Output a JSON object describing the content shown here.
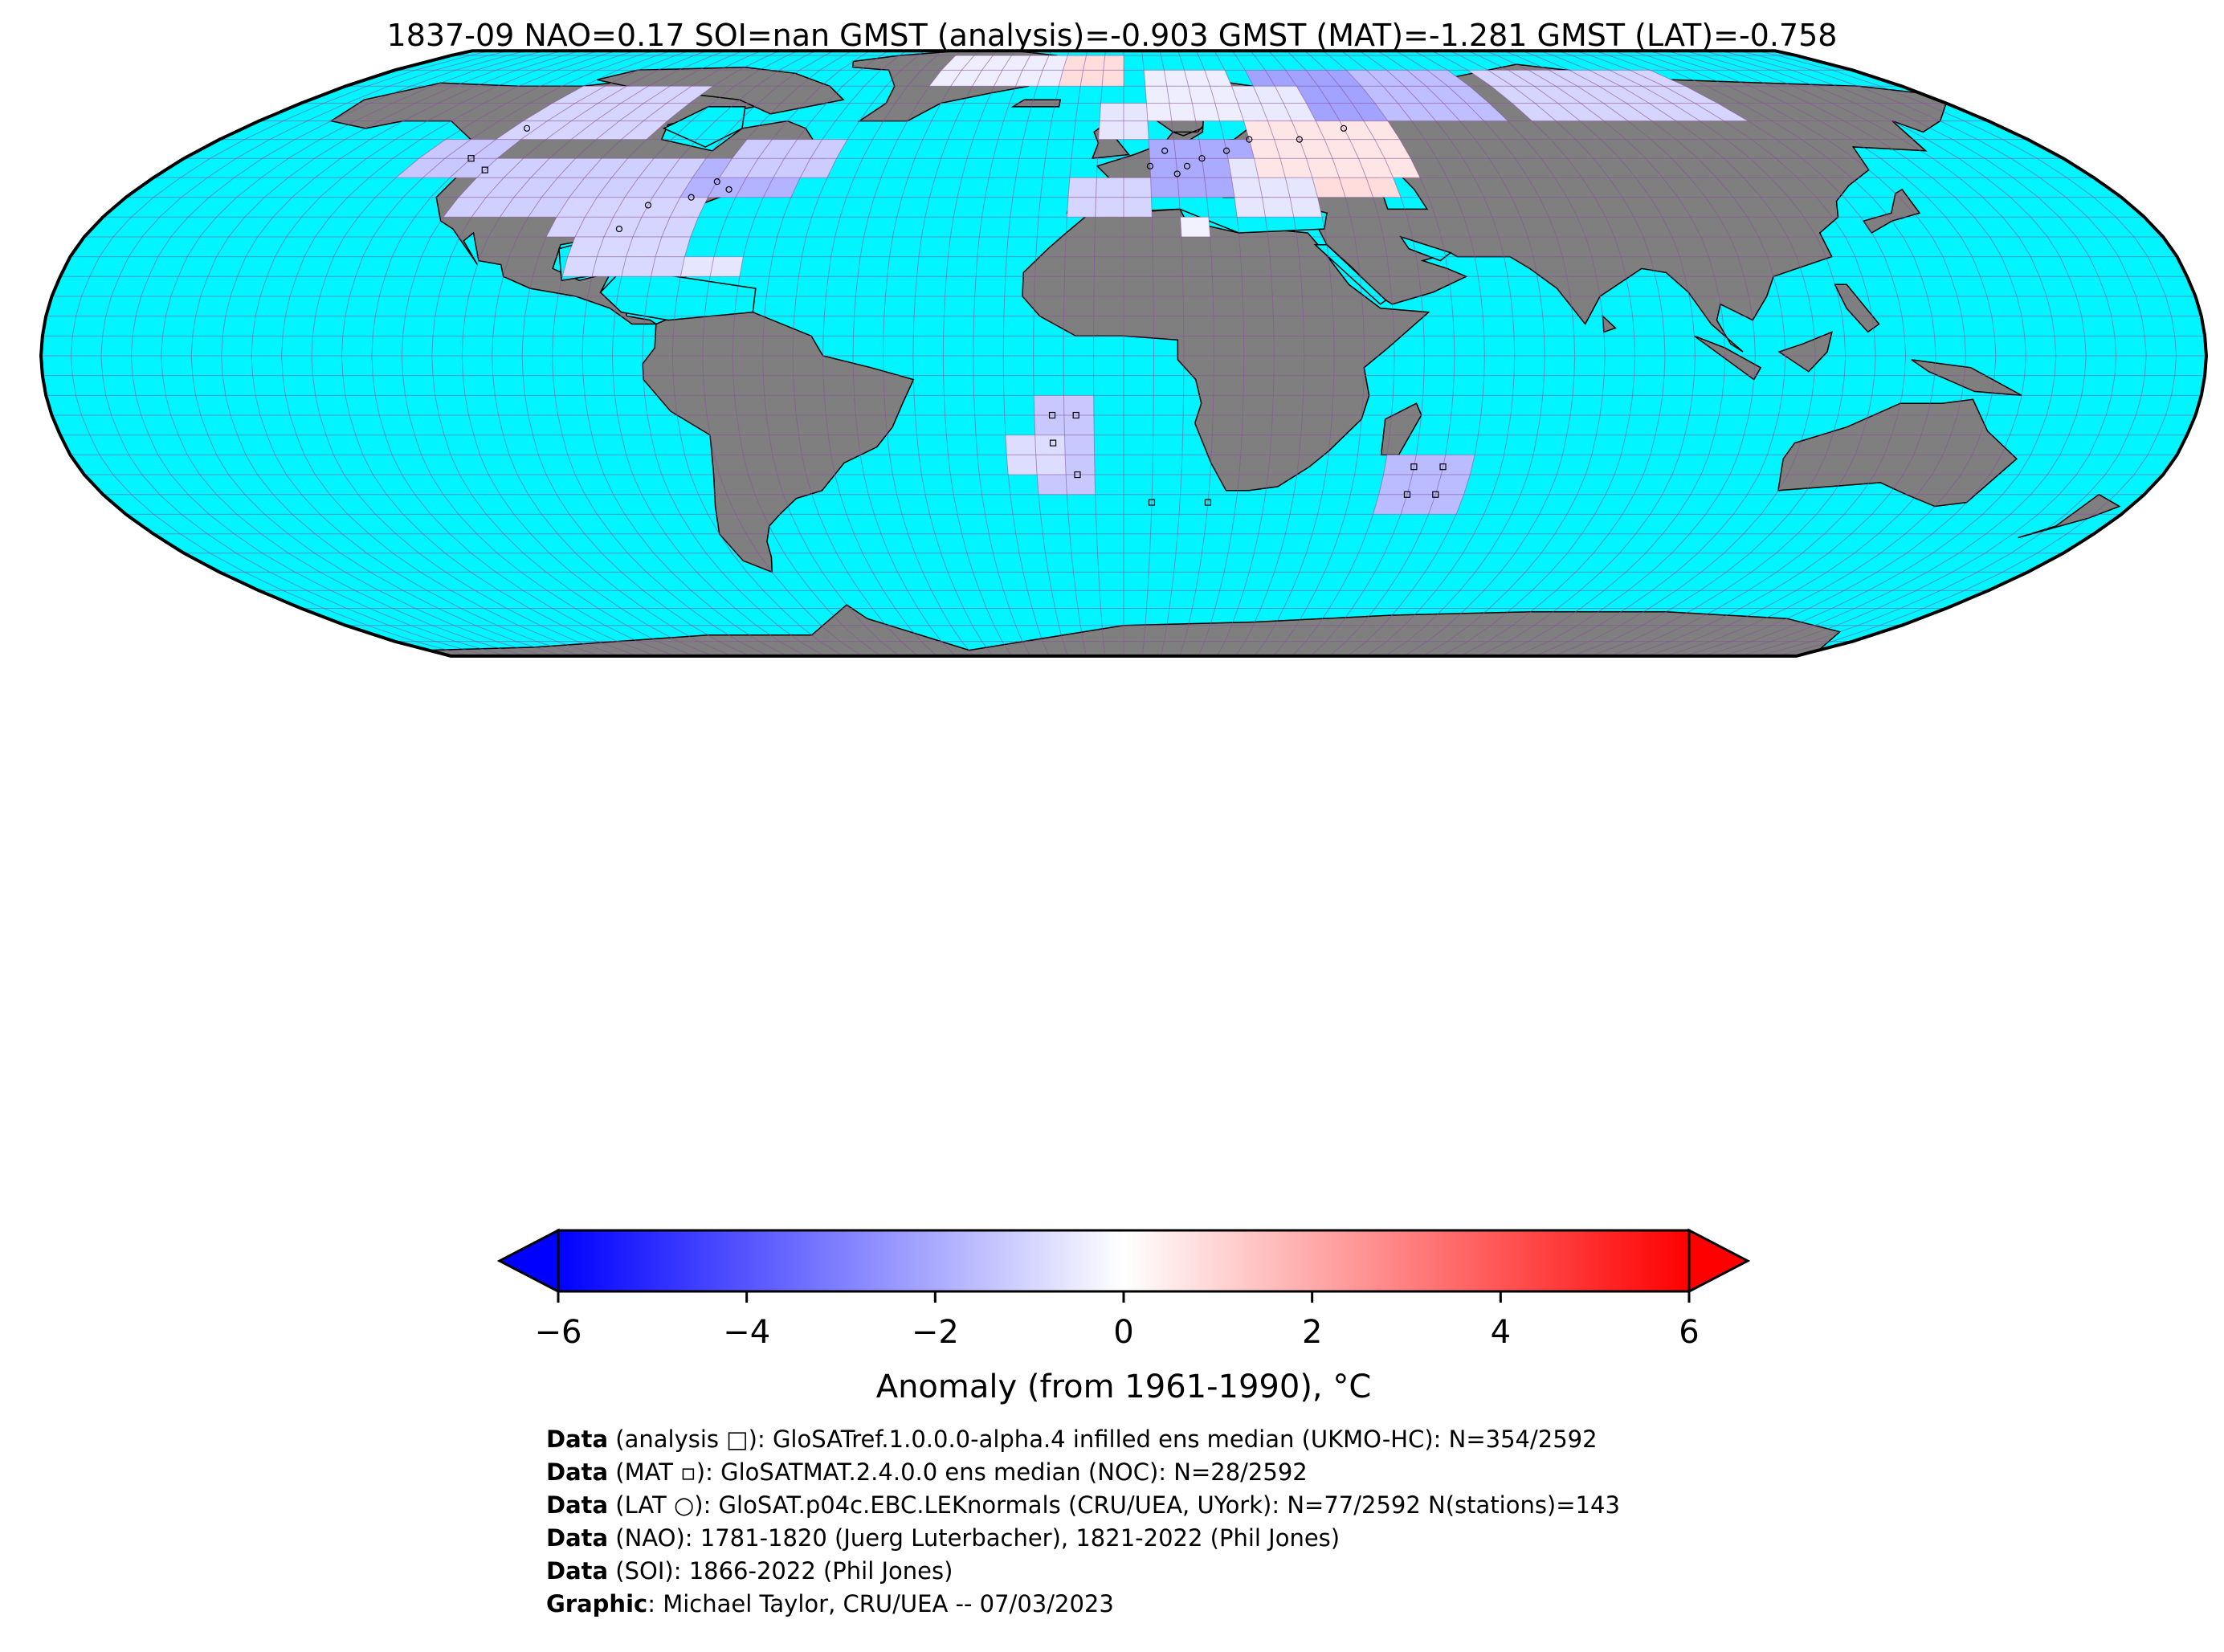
{
  "title": "1837-09 NAO=0.17 SOI=nan GMST (analysis)=-0.903 GMST (MAT)=-1.281 GMST (LAT)=-0.758",
  "colors": {
    "ocean": "#00f5ff",
    "land": "#7f7f7f",
    "grid": "#8b4f9a",
    "coast": "#000000",
    "cmap_low": "#0000ff",
    "cmap_mid": "#ffffff",
    "cmap_high": "#ff0000"
  },
  "map": {
    "projection": "Robinson",
    "grid_spacing_deg": 5,
    "cells_note_legend": {
      "analysis_marker": "□",
      "mat_marker": "▫",
      "lat_marker": "○"
    }
  },
  "colorbar": {
    "min": -6,
    "max": 6,
    "extend": "both",
    "ticks": [
      "−6",
      "−4",
      "−2",
      "0",
      "2",
      "4",
      "6"
    ],
    "label": "Anomaly (from 1961-1990), °C"
  },
  "footer": [
    {
      "bold": "Data",
      "text": " (analysis □): GloSATref.1.0.0.0-alpha.4 infilled ens median (UKMO-HC): N=354/2592"
    },
    {
      "bold": "Data",
      "text": " (MAT ▫): GloSATMAT.2.4.0.0 ens median (NOC): N=28/2592"
    },
    {
      "bold": "Data",
      "text": " (LAT ○): GloSAT.p04c.EBC.LEKnormals (CRU/UEA, UYork): N=77/2592 N(stations)=143"
    },
    {
      "bold": "Data",
      "text": " (NAO): 1781-1820 (Juerg Luterbacher), 1821-2022 (Phil Jones)"
    },
    {
      "bold": "Data",
      "text": " (SOI): 1866-2022 (Phil Jones)"
    },
    {
      "bold": "Graphic",
      "text": ": Michael Taylor, CRU/UEA -- 07/03/2023"
    }
  ]
}
